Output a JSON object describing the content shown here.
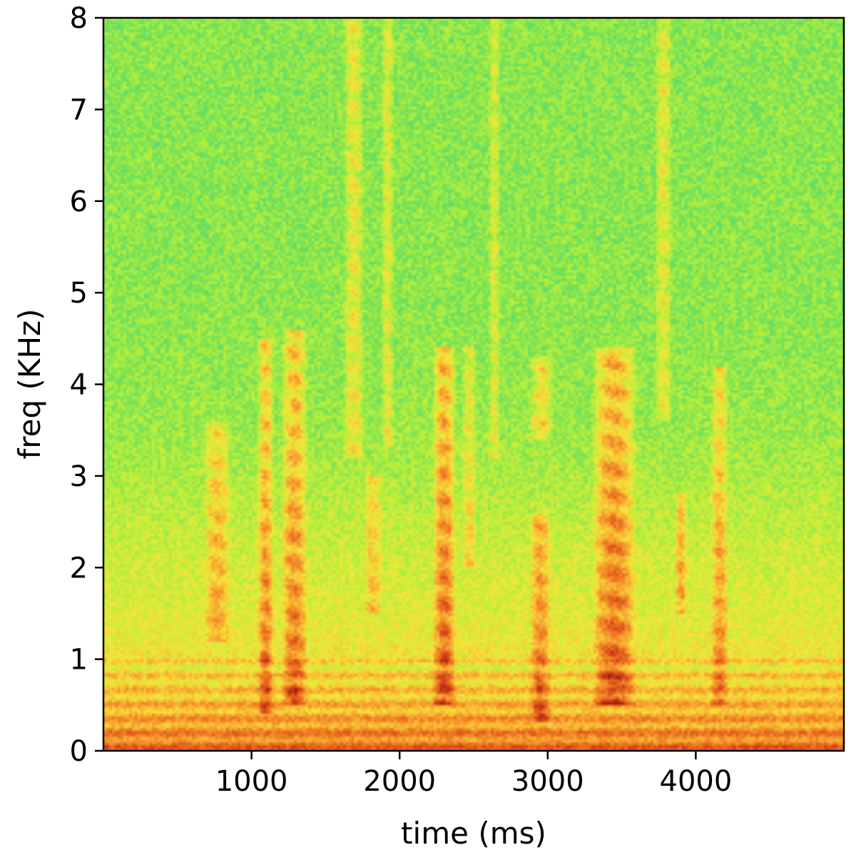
{
  "chart_data": {
    "type": "heatmap",
    "title": "",
    "xlabel": "time (ms)",
    "ylabel": "freq (KHz)",
    "xlim": [
      0,
      5000
    ],
    "ylim": [
      0,
      8
    ],
    "xticks": [
      {
        "value": 1000,
        "label": "1000"
      },
      {
        "value": 2000,
        "label": "2000"
      },
      {
        "value": 3000,
        "label": "3000"
      },
      {
        "value": 4000,
        "label": "4000"
      }
    ],
    "yticks": [
      {
        "value": 0,
        "label": "0"
      },
      {
        "value": 1,
        "label": "1"
      },
      {
        "value": 2,
        "label": "2"
      },
      {
        "value": 3,
        "label": "3"
      },
      {
        "value": 4,
        "label": "4"
      },
      {
        "value": 5,
        "label": "5"
      },
      {
        "value": 6,
        "label": "6"
      },
      {
        "value": 7,
        "label": "7"
      },
      {
        "value": 8,
        "label": "8"
      }
    ],
    "colormap": [
      "#1e90c8",
      "#29c9b0",
      "#6ee05a",
      "#b8ef3c",
      "#f5e63a",
      "#f9b233",
      "#ef7a22",
      "#d6461a",
      "#a51f0f"
    ],
    "energy_events": [
      {
        "t_start": 680,
        "t_end": 860,
        "f_low": 1.2,
        "f_high": 3.6,
        "intensity": 0.55
      },
      {
        "t_start": 1040,
        "t_end": 1150,
        "f_low": 0.4,
        "f_high": 4.5,
        "intensity": 0.7
      },
      {
        "t_start": 1200,
        "t_end": 1380,
        "f_low": 0.5,
        "f_high": 4.6,
        "intensity": 0.75
      },
      {
        "t_start": 1620,
        "t_end": 1760,
        "f_low": 3.2,
        "f_high": 8.0,
        "intensity": 0.5
      },
      {
        "t_start": 1880,
        "t_end": 1960,
        "f_low": 3.3,
        "f_high": 8.0,
        "intensity": 0.45
      },
      {
        "t_start": 1760,
        "t_end": 1880,
        "f_low": 1.5,
        "f_high": 3.0,
        "intensity": 0.45
      },
      {
        "t_start": 2220,
        "t_end": 2380,
        "f_low": 0.5,
        "f_high": 4.4,
        "intensity": 0.85
      },
      {
        "t_start": 2420,
        "t_end": 2520,
        "f_low": 2.0,
        "f_high": 4.4,
        "intensity": 0.4
      },
      {
        "t_start": 2600,
        "t_end": 2680,
        "f_low": 3.2,
        "f_high": 8.0,
        "intensity": 0.4
      },
      {
        "t_start": 2880,
        "t_end": 3040,
        "f_low": 3.4,
        "f_high": 4.3,
        "intensity": 0.55
      },
      {
        "t_start": 2880,
        "t_end": 3020,
        "f_low": 0.3,
        "f_high": 2.6,
        "intensity": 0.65
      },
      {
        "t_start": 3300,
        "t_end": 3600,
        "f_low": 0.5,
        "f_high": 4.4,
        "intensity": 0.85
      },
      {
        "t_start": 3720,
        "t_end": 3840,
        "f_low": 3.6,
        "f_high": 8.0,
        "intensity": 0.45
      },
      {
        "t_start": 3860,
        "t_end": 3940,
        "f_low": 1.5,
        "f_high": 2.8,
        "intensity": 0.6
      },
      {
        "t_start": 4100,
        "t_end": 4220,
        "f_low": 0.5,
        "f_high": 4.2,
        "intensity": 0.6
      }
    ],
    "grid": false,
    "legend": "none"
  }
}
